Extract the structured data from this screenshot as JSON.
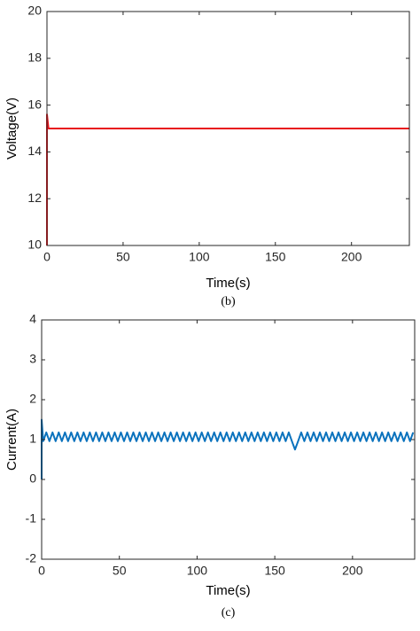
{
  "chart_data": [
    {
      "type": "line",
      "caption": "(b)",
      "xlabel": "Time(s)",
      "ylabel": "Voltage(V)",
      "xlim": [
        0,
        238
      ],
      "xticks": [
        0,
        50,
        100,
        150,
        200
      ],
      "ylim": [
        10,
        20
      ],
      "yticks": [
        10,
        12,
        14,
        16,
        18,
        20
      ],
      "grid": false,
      "series": [
        {
          "color": "#e8141b",
          "x": [
            0,
            0,
            1,
            238
          ],
          "values": [
            10,
            15.6,
            15,
            15
          ]
        }
      ]
    },
    {
      "type": "line",
      "caption": "(c)",
      "xlabel": "Time(s)",
      "ylabel": "Current(A)",
      "xlim": [
        0,
        240
      ],
      "xticks": [
        0,
        50,
        100,
        150,
        200
      ],
      "ylim": [
        -2,
        4
      ],
      "yticks": [
        -2,
        -1,
        0,
        1,
        2,
        3,
        4
      ],
      "grid": false,
      "series": [
        {
          "color": "#0a72bd",
          "x": [
            0,
            0,
            1,
            3,
            5,
            7,
            9,
            11,
            13,
            15,
            17,
            19,
            21,
            23,
            25,
            27,
            29,
            31,
            33,
            35,
            37,
            39,
            41,
            43,
            45,
            47,
            49,
            51,
            53,
            55,
            57,
            59,
            61,
            63,
            65,
            67,
            69,
            71,
            73,
            75,
            77,
            79,
            81,
            83,
            85,
            87,
            89,
            91,
            93,
            95,
            97,
            99,
            101,
            103,
            105,
            107,
            109,
            111,
            113,
            115,
            117,
            119,
            121,
            123,
            125,
            127,
            129,
            131,
            133,
            135,
            137,
            139,
            141,
            143,
            145,
            147,
            149,
            151,
            153,
            155,
            157,
            159,
            161,
            163,
            165,
            167,
            169,
            171,
            173,
            175,
            177,
            179,
            181,
            183,
            185,
            187,
            189,
            191,
            193,
            195,
            197,
            199,
            201,
            203,
            205,
            207,
            209,
            211,
            213,
            215,
            217,
            219,
            221,
            223,
            225,
            227,
            229,
            231,
            233,
            235,
            237,
            239
          ],
          "values": [
            0,
            1.5,
            0.96,
            1.18,
            0.96,
            1.18,
            0.96,
            1.18,
            0.96,
            1.18,
            0.96,
            1.18,
            0.96,
            1.18,
            0.96,
            1.18,
            0.96,
            1.18,
            0.96,
            1.18,
            0.96,
            1.18,
            0.96,
            1.18,
            0.96,
            1.18,
            0.96,
            1.18,
            0.96,
            1.18,
            0.96,
            1.18,
            0.96,
            1.18,
            0.96,
            1.18,
            0.96,
            1.18,
            0.96,
            1.18,
            0.96,
            1.18,
            0.96,
            1.18,
            0.96,
            1.18,
            0.96,
            1.18,
            0.96,
            1.18,
            0.96,
            1.18,
            0.96,
            1.18,
            0.96,
            1.18,
            0.96,
            1.18,
            0.96,
            1.18,
            0.96,
            1.18,
            0.96,
            1.18,
            0.96,
            1.18,
            0.96,
            1.18,
            0.96,
            1.18,
            0.96,
            1.18,
            0.96,
            1.18,
            0.96,
            1.18,
            0.96,
            1.18,
            0.96,
            1.18,
            0.96,
            1.18,
            0.96,
            0.75,
            0.96,
            1.18,
            0.96,
            1.18,
            0.96,
            1.18,
            0.96,
            1.18,
            0.96,
            1.18,
            0.96,
            1.18,
            0.96,
            1.18,
            0.96,
            1.18,
            0.96,
            1.18,
            0.96,
            1.18,
            0.96,
            1.18,
            0.96,
            1.18,
            0.96,
            1.18,
            0.96,
            1.18,
            0.96,
            1.18,
            0.96,
            1.18,
            0.96,
            1.18,
            0.96,
            1.18,
            0.96,
            1.18
          ]
        }
      ]
    }
  ]
}
